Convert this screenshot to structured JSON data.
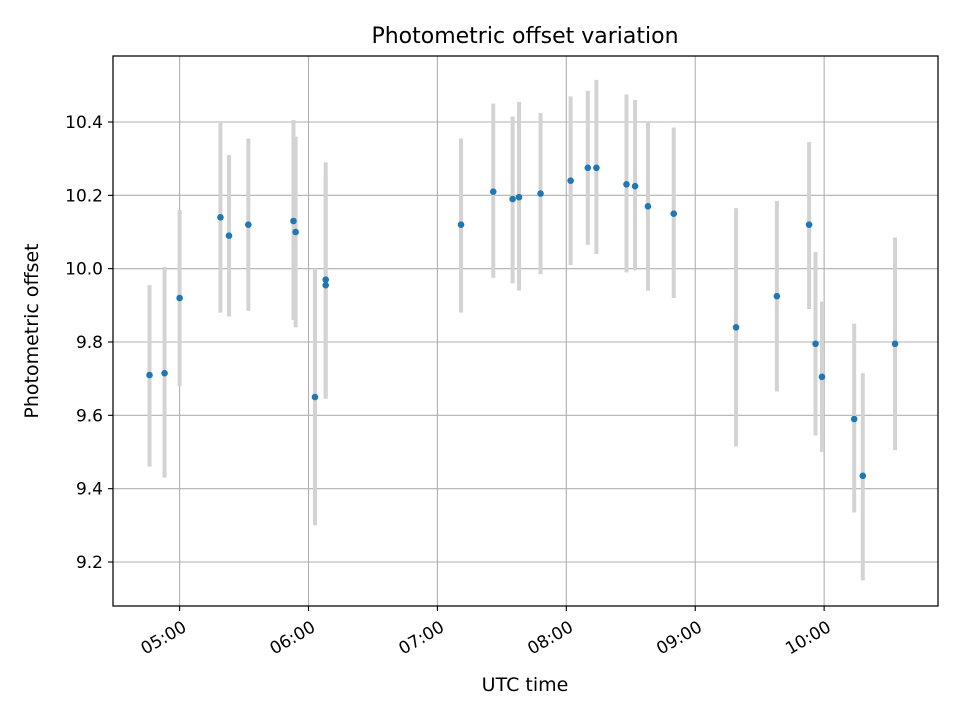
{
  "chart_data": {
    "type": "scatter",
    "title": "Photometric offset variation",
    "xlabel": "UTC time",
    "ylabel": "Photometric offset",
    "xlim": [
      "04:29",
      "10:53"
    ],
    "ylim": [
      9.08,
      10.58
    ],
    "x_ticks": [
      "05:00",
      "06:00",
      "07:00",
      "08:00",
      "09:00",
      "10:00"
    ],
    "y_ticks": [
      9.2,
      9.4,
      9.6,
      9.8,
      10.0,
      10.2,
      10.4
    ],
    "grid": true,
    "colors": {
      "point": "#1f77b4",
      "errorbar": "#d3d3d3",
      "grid": "#b0b0b0"
    },
    "points": [
      {
        "t": "04:46",
        "y": 9.71,
        "lo": 9.46,
        "hi": 9.955
      },
      {
        "t": "04:53",
        "y": 9.715,
        "lo": 9.43,
        "hi": 10.005
      },
      {
        "t": "05:00",
        "y": 9.92,
        "lo": 9.68,
        "hi": 10.16
      },
      {
        "t": "05:19",
        "y": 10.14,
        "lo": 9.88,
        "hi": 10.4
      },
      {
        "t": "05:23",
        "y": 10.09,
        "lo": 9.87,
        "hi": 10.31
      },
      {
        "t": "05:32",
        "y": 10.12,
        "lo": 9.885,
        "hi": 10.355
      },
      {
        "t": "05:53",
        "y": 10.13,
        "lo": 9.86,
        "hi": 10.405
      },
      {
        "t": "05:54",
        "y": 10.1,
        "lo": 9.84,
        "hi": 10.36
      },
      {
        "t": "06:03",
        "y": 9.65,
        "lo": 9.3,
        "hi": 10.0
      },
      {
        "t": "06:08",
        "y": 9.97,
        "lo": 9.65,
        "hi": 10.29
      },
      {
        "t": "06:08",
        "y": 9.955,
        "lo": 9.645,
        "hi": 10.255
      },
      {
        "t": "07:11",
        "y": 10.12,
        "lo": 9.88,
        "hi": 10.355
      },
      {
        "t": "07:26",
        "y": 10.21,
        "lo": 9.975,
        "hi": 10.45
      },
      {
        "t": "07:35",
        "y": 10.19,
        "lo": 9.96,
        "hi": 10.415
      },
      {
        "t": "07:38",
        "y": 10.195,
        "lo": 9.94,
        "hi": 10.455
      },
      {
        "t": "07:48",
        "y": 10.205,
        "lo": 9.985,
        "hi": 10.425
      },
      {
        "t": "08:02",
        "y": 10.24,
        "lo": 10.01,
        "hi": 10.47
      },
      {
        "t": "08:10",
        "y": 10.275,
        "lo": 10.065,
        "hi": 10.485
      },
      {
        "t": "08:14",
        "y": 10.275,
        "lo": 10.04,
        "hi": 10.515
      },
      {
        "t": "08:28",
        "y": 10.23,
        "lo": 9.99,
        "hi": 10.475
      },
      {
        "t": "08:32",
        "y": 10.225,
        "lo": 9.995,
        "hi": 10.46
      },
      {
        "t": "08:38",
        "y": 10.17,
        "lo": 9.94,
        "hi": 10.4
      },
      {
        "t": "08:50",
        "y": 10.15,
        "lo": 9.92,
        "hi": 10.385
      },
      {
        "t": "09:19",
        "y": 9.84,
        "lo": 9.515,
        "hi": 10.165
      },
      {
        "t": "09:38",
        "y": 9.925,
        "lo": 9.665,
        "hi": 10.185
      },
      {
        "t": "09:53",
        "y": 10.12,
        "lo": 9.89,
        "hi": 10.345
      },
      {
        "t": "09:56",
        "y": 9.795,
        "lo": 9.545,
        "hi": 10.045
      },
      {
        "t": "09:59",
        "y": 9.705,
        "lo": 9.5,
        "hi": 9.91
      },
      {
        "t": "10:14",
        "y": 9.59,
        "lo": 9.335,
        "hi": 9.85
      },
      {
        "t": "10:18",
        "y": 9.435,
        "lo": 9.15,
        "hi": 9.715
      },
      {
        "t": "10:33",
        "y": 9.795,
        "lo": 9.505,
        "hi": 10.085
      }
    ]
  }
}
